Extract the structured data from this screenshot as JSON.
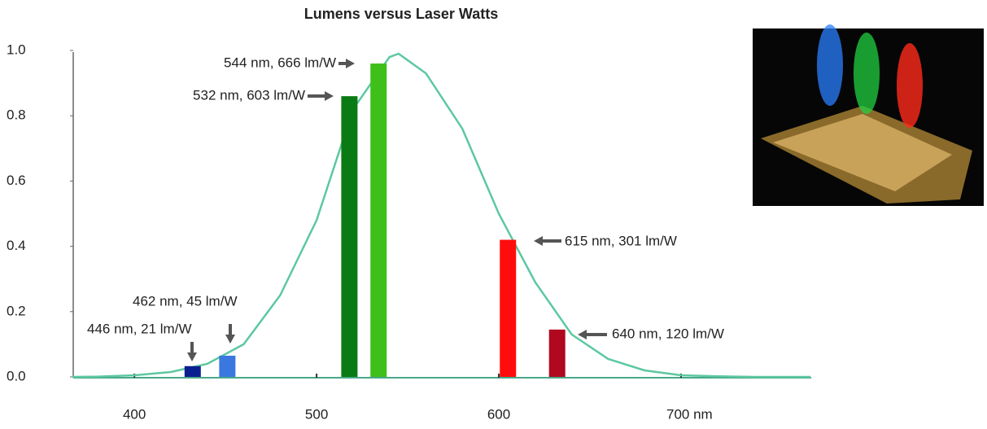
{
  "chart_data": {
    "type": "bar",
    "title": "Lumens versus Laser Watts",
    "xlim": [
      366,
      771
    ],
    "ylim": [
      0,
      1
    ],
    "xticks": [
      400,
      500,
      600,
      {
        "value": 700,
        "label": "700 nm"
      }
    ],
    "yticks": [
      {
        "value": 0,
        "label": "0.0"
      },
      0.2,
      0.4,
      0.6,
      0.8,
      {
        "value": 1,
        "label": "1.0"
      }
    ],
    "bars": {
      "x": [
        432,
        451,
        518,
        534,
        605,
        632
      ],
      "values": [
        0.033,
        0.065,
        0.86,
        0.96,
        0.42,
        0.145
      ],
      "colors": [
        "#0a1f8f",
        "#3a78e0",
        "#0a7a14",
        "#3fbf1a",
        "#ff0d0d",
        "#b0081f"
      ]
    },
    "curve": {
      "color": "#5dc8a0",
      "x": [
        366,
        380,
        400,
        420,
        440,
        460,
        480,
        500,
        520,
        540,
        545,
        560,
        580,
        600,
        620,
        640,
        660,
        680,
        700,
        720,
        740,
        771
      ],
      "values": [
        0,
        0.001,
        0.005,
        0.015,
        0.04,
        0.1,
        0.25,
        0.48,
        0.82,
        0.98,
        0.99,
        0.93,
        0.76,
        0.5,
        0.29,
        0.13,
        0.055,
        0.02,
        0.005,
        0.002,
        0,
        0
      ]
    },
    "annotations": [
      "544 nm, 666 lm/W",
      "532 nm, 603 lm/W",
      "615 nm, 301 lm/W",
      "640 nm, 120 lm/W",
      "462 nm, 45 lm/W",
      "446 nm, 21 lm/W"
    ]
  }
}
